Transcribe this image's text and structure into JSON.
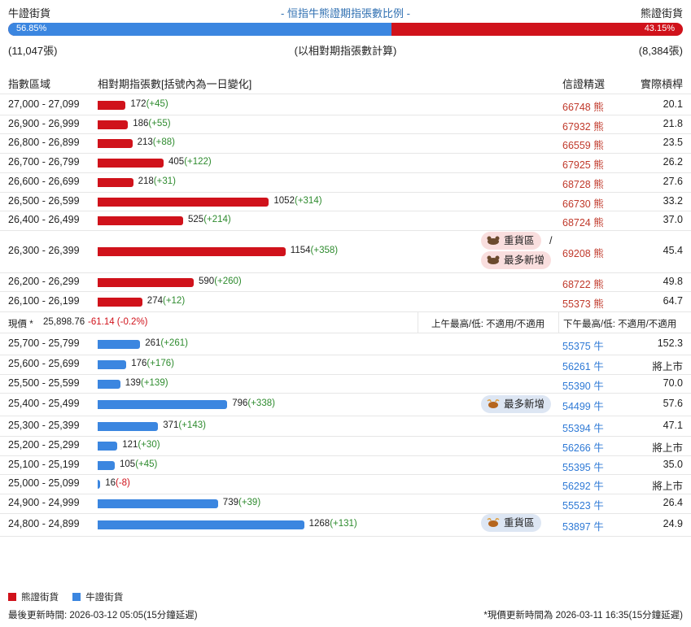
{
  "header": {
    "left_label": "牛證街貨",
    "title": "- 恒指牛熊證期指張數比例 -",
    "right_label": "熊證街貨",
    "bull_pct": "56.85%",
    "bear_pct": "43.15%",
    "bull_fraction": 0.5685,
    "bull_count": "(11,047張)",
    "bear_count": "(8,384張)",
    "note": "(以相對期指張數計算)"
  },
  "columns": {
    "range": "指數區域",
    "contracts": "相對期指張數[括號內為一日變化]",
    "code": "信證精選",
    "leverage": "實際槓桿"
  },
  "bear_rows": [
    {
      "range": "27,000 - 27,099",
      "value": 172,
      "value_text": "172",
      "change": "(+45)",
      "code": "66748",
      "type": "熊",
      "leverage": "20.1"
    },
    {
      "range": "26,900 - 26,999",
      "value": 186,
      "value_text": "186",
      "change": "(+55)",
      "code": "67932",
      "type": "熊",
      "leverage": "21.8"
    },
    {
      "range": "26,800 - 26,899",
      "value": 213,
      "value_text": "213",
      "change": "(+88)",
      "code": "66559",
      "type": "熊",
      "leverage": "23.5"
    },
    {
      "range": "26,700 - 26,799",
      "value": 405,
      "value_text": "405",
      "change": "(+122)",
      "code": "67925",
      "type": "熊",
      "leverage": "26.2"
    },
    {
      "range": "26,600 - 26,699",
      "value": 218,
      "value_text": "218",
      "change": "(+31)",
      "code": "68728",
      "type": "熊",
      "leverage": "27.6"
    },
    {
      "range": "26,500 - 26,599",
      "value": 1052,
      "value_text": "1052",
      "change": "(+314)",
      "code": "66730",
      "type": "熊",
      "leverage": "33.2"
    },
    {
      "range": "26,400 - 26,499",
      "value": 525,
      "value_text": "525",
      "change": "(+214)",
      "code": "68724",
      "type": "熊",
      "leverage": "37.0"
    },
    {
      "range": "26,300 - 26,399",
      "value": 1154,
      "value_text": "1154",
      "change": "(+358)",
      "code": "69208",
      "type": "熊",
      "leverage": "45.4"
    },
    {
      "range": "26,200 - 26,299",
      "value": 590,
      "value_text": "590",
      "change": "(+260)",
      "code": "68722",
      "type": "熊",
      "leverage": "49.8"
    },
    {
      "range": "26,100 - 26,199",
      "value": 274,
      "value_text": "274",
      "change": "(+12)",
      "code": "55373",
      "type": "熊",
      "leverage": "64.7"
    }
  ],
  "bear_badges": {
    "heavy": "重貨區",
    "slash": "/",
    "most_new": "最多新增"
  },
  "spot": {
    "label": "現價 *",
    "price": "25,898.76",
    "change": "-61.14 (-0.2%)",
    "am": "上午最高/低: 不適用/不適用",
    "pm": "下午最高/低: 不適用/不適用"
  },
  "bull_rows": [
    {
      "range": "25,700 - 25,799",
      "value": 261,
      "value_text": "261",
      "change": "(+261)",
      "code": "55375",
      "type": "牛",
      "leverage": "152.3"
    },
    {
      "range": "25,600 - 25,699",
      "value": 176,
      "value_text": "176",
      "change": "(+176)",
      "code": "56261",
      "type": "牛",
      "leverage": "將上市"
    },
    {
      "range": "25,500 - 25,599",
      "value": 139,
      "value_text": "139",
      "change": "(+139)",
      "code": "55390",
      "type": "牛",
      "leverage": "70.0"
    },
    {
      "range": "25,400 - 25,499",
      "value": 796,
      "value_text": "796",
      "change": "(+338)",
      "code": "54499",
      "type": "牛",
      "leverage": "57.6"
    },
    {
      "range": "25,300 - 25,399",
      "value": 371,
      "value_text": "371",
      "change": "(+143)",
      "code": "55394",
      "type": "牛",
      "leverage": "47.1"
    },
    {
      "range": "25,200 - 25,299",
      "value": 121,
      "value_text": "121",
      "change": "(+30)",
      "code": "56266",
      "type": "牛",
      "leverage": "將上市"
    },
    {
      "range": "25,100 - 25,199",
      "value": 105,
      "value_text": "105",
      "change": "(+45)",
      "code": "55395",
      "type": "牛",
      "leverage": "35.0"
    },
    {
      "range": "25,000 - 25,099",
      "value": 16,
      "value_text": "16",
      "change": "(-8)",
      "code": "56292",
      "type": "牛",
      "leverage": "將上市"
    },
    {
      "range": "24,900 - 24,999",
      "value": 739,
      "value_text": "739",
      "change": "(+39)",
      "code": "55523",
      "type": "牛",
      "leverage": "26.4"
    },
    {
      "range": "24,800 - 24,899",
      "value": 1268,
      "value_text": "1268",
      "change": "(+131)",
      "code": "53897",
      "type": "牛",
      "leverage": "24.9"
    }
  ],
  "bull_badges": {
    "most_new": "最多新增",
    "heavy": "重貨區"
  },
  "legend": {
    "bear": "熊證街貨",
    "bull": "牛證街貨"
  },
  "footer": {
    "left": "最後更新時間: 2026-03-12 05:05(15分鐘延遲)",
    "right": "*現價更新時間為 2026-03-11 16:35(15分鐘延遲)"
  },
  "colors": {
    "bear": "#d0121b",
    "bull": "#3b86e0",
    "positive": "#2e8b2e"
  },
  "chart_data": {
    "type": "bar",
    "title": "- 恒指牛熊證期指張數比例 -",
    "xlabel": "指數區域",
    "ylabel": "相對期指張數",
    "series": [
      {
        "name": "熊證街貨",
        "categories": [
          "27,000 - 27,099",
          "26,900 - 26,999",
          "26,800 - 26,899",
          "26,700 - 26,799",
          "26,600 - 26,699",
          "26,500 - 26,599",
          "26,400 - 26,499",
          "26,300 - 26,399",
          "26,200 - 26,299",
          "26,100 - 26,199"
        ],
        "values": [
          172,
          186,
          213,
          405,
          218,
          1052,
          525,
          1154,
          590,
          274
        ]
      },
      {
        "name": "牛證街貨",
        "categories": [
          "25,700 - 25,799",
          "25,600 - 25,699",
          "25,500 - 25,599",
          "25,400 - 25,499",
          "25,300 - 25,399",
          "25,200 - 25,299",
          "25,100 - 25,199",
          "25,000 - 25,099",
          "24,900 - 24,999",
          "24,800 - 24,899"
        ],
        "values": [
          261,
          176,
          139,
          796,
          371,
          121,
          105,
          16,
          739,
          1268
        ]
      }
    ]
  }
}
